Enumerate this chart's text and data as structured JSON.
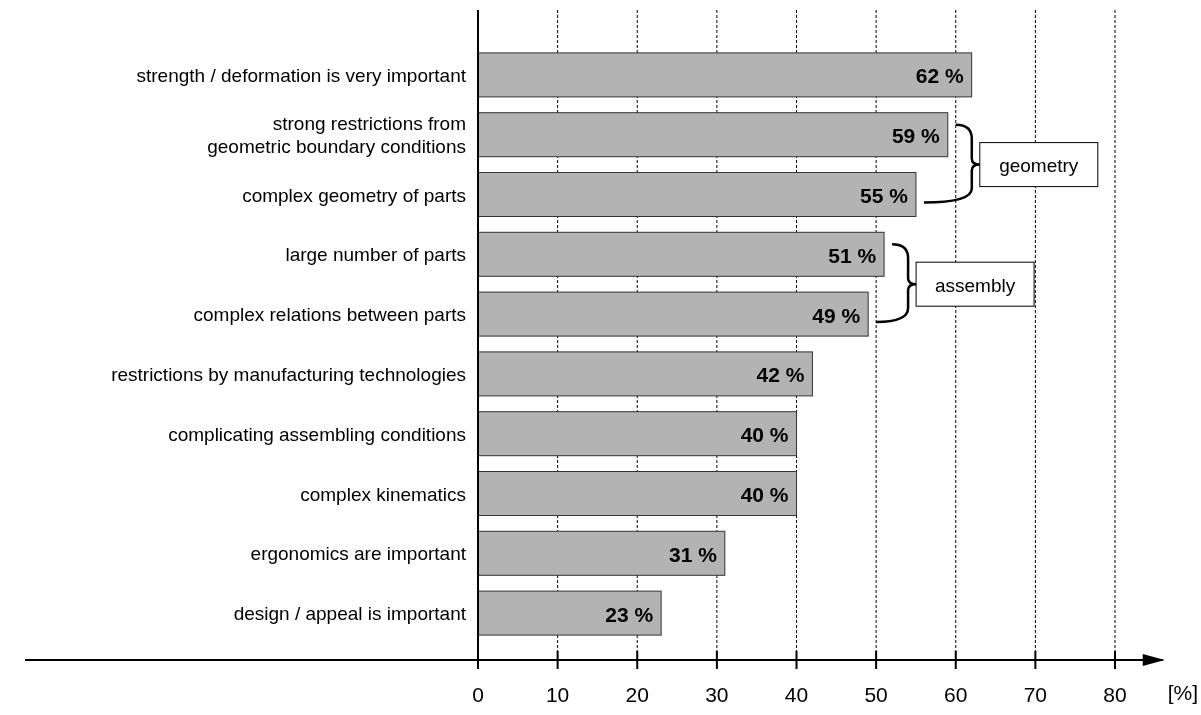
{
  "chart_data": {
    "type": "bar",
    "orientation": "horizontal",
    "xlabel": "[%]",
    "categories": [
      "strength / deformation is very important",
      "strong restrictions from\ngeometric boundary conditions",
      "complex geometry of parts",
      "large number of parts",
      "complex relations between parts",
      "restrictions by manufacturing technologies",
      "complicating assembling conditions",
      "complex kinematics",
      "ergonomics are important",
      "design / appeal is important"
    ],
    "values": [
      62,
      59,
      55,
      51,
      49,
      42,
      40,
      40,
      31,
      23
    ],
    "value_labels": [
      "62 %",
      "59 %",
      "55 %",
      "51 %",
      "49 %",
      "42 %",
      "40 %",
      "40 %",
      "31 %",
      "23 %"
    ],
    "color": "#b3b3b3",
    "xlim": [
      0,
      86
    ],
    "xticks": [
      0,
      10,
      20,
      30,
      40,
      50,
      60,
      70,
      80
    ],
    "grid": "x",
    "annotations": [
      "geometry",
      "assembly"
    ]
  }
}
